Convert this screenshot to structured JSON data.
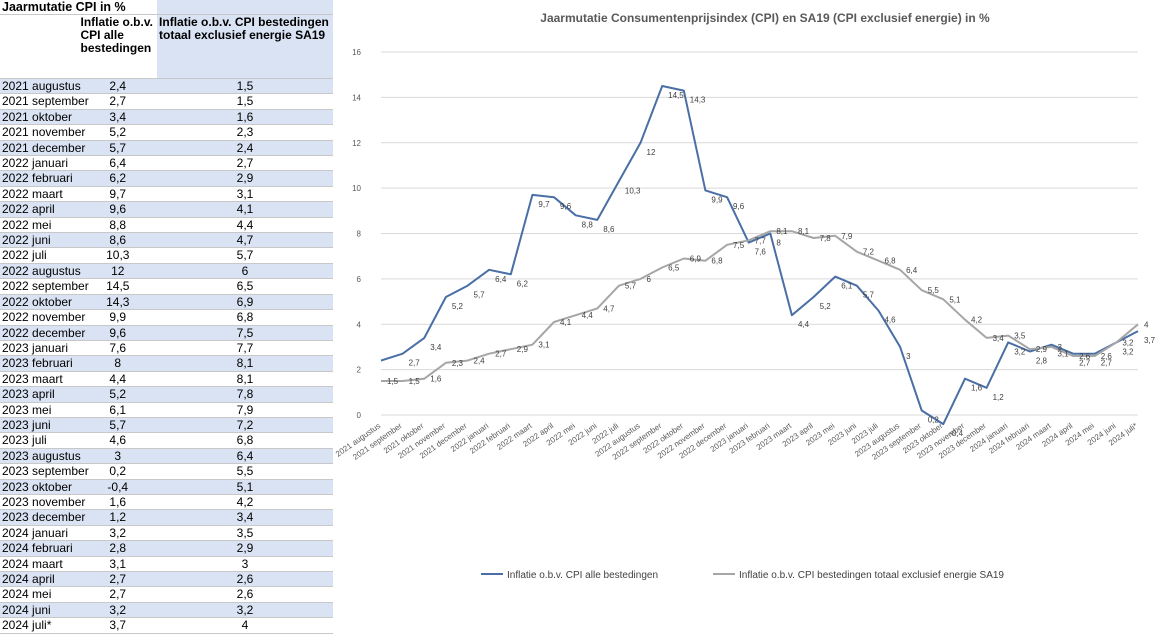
{
  "table": {
    "title": "Jaarmutatie CPI in %",
    "col_a_header": "Inflatie o.b.v. CPI alle bestedingen",
    "col_b_header": "Inflatie o.b.v. CPI bestedingen totaal exclusief energie SA19",
    "rows": [
      [
        "2021 augustus",
        "2,4",
        "1,5"
      ],
      [
        "2021 september",
        "2,7",
        "1,5"
      ],
      [
        "2021 oktober",
        "3,4",
        "1,6"
      ],
      [
        "2021 november",
        "5,2",
        "2,3"
      ],
      [
        "2021 december",
        "5,7",
        "2,4"
      ],
      [
        "2022 januari",
        "6,4",
        "2,7"
      ],
      [
        "2022 februari",
        "6,2",
        "2,9"
      ],
      [
        "2022 maart",
        "9,7",
        "3,1"
      ],
      [
        "2022 april",
        "9,6",
        "4,1"
      ],
      [
        "2022 mei",
        "8,8",
        "4,4"
      ],
      [
        "2022 juni",
        "8,6",
        "4,7"
      ],
      [
        "2022 juli",
        "10,3",
        "5,7"
      ],
      [
        "2022 augustus",
        "12",
        "6"
      ],
      [
        "2022 september",
        "14,5",
        "6,5"
      ],
      [
        "2022 oktober",
        "14,3",
        "6,9"
      ],
      [
        "2022 november",
        "9,9",
        "6,8"
      ],
      [
        "2022 december",
        "9,6",
        "7,5"
      ],
      [
        "2023 januari",
        "7,6",
        "7,7"
      ],
      [
        "2023 februari",
        "8",
        "8,1"
      ],
      [
        "2023 maart",
        "4,4",
        "8,1"
      ],
      [
        "2023 april",
        "5,2",
        "7,8"
      ],
      [
        "2023 mei",
        "6,1",
        "7,9"
      ],
      [
        "2023 juni",
        "5,7",
        "7,2"
      ],
      [
        "2023 juli",
        "4,6",
        "6,8"
      ],
      [
        "2023 augustus",
        "3",
        "6,4"
      ],
      [
        "2023 september",
        "0,2",
        "5,5"
      ],
      [
        "2023 oktober",
        "-0,4",
        "5,1"
      ],
      [
        "2023 november",
        "1,6",
        "4,2"
      ],
      [
        "2023 december",
        "1,2",
        "3,4"
      ],
      [
        "2024 januari",
        "3,2",
        "3,5"
      ],
      [
        "2024 februari",
        "2,8",
        "2,9"
      ],
      [
        "2024 maart",
        "3,1",
        "3"
      ],
      [
        "2024 april",
        "2,7",
        "2,6"
      ],
      [
        "2024 mei",
        "2,7",
        "2,6"
      ],
      [
        "2024 juni",
        "3,2",
        "3,2"
      ],
      [
        "2024 juli*",
        "3,7",
        "4"
      ]
    ]
  },
  "chart_data": {
    "type": "line",
    "title": "Jaarmutatie Consumentenprijsindex (CPI) en SA19 (CPI exclusief energie) in %",
    "xlabel": "",
    "ylabel": "",
    "ylim": [
      0,
      16
    ],
    "yticks": [
      0,
      2,
      4,
      6,
      8,
      10,
      12,
      14,
      16
    ],
    "grid": true,
    "legend_position": "bottom",
    "categories": [
      "2021 augustus",
      "2021 september",
      "2021 oktober",
      "2021 november",
      "2021 december",
      "2022 januari",
      "2022 februari",
      "2022 maart",
      "2022 april",
      "2022 mei",
      "2022 juni",
      "2022 juli",
      "2022 augustus",
      "2022 september",
      "2022 oktober",
      "2022 november",
      "2022 december",
      "2023 januari",
      "2023 februari",
      "2023 maart",
      "2023 april",
      "2023 mei",
      "2023 juni",
      "2023 juli",
      "2023 augustus",
      "2023 september",
      "2023 oktober",
      "2023 november",
      "2023 december",
      "2024 januari",
      "2024 februari",
      "2024 maart",
      "2024 april",
      "2024 mei",
      "2024 juni",
      "2024 juli*"
    ],
    "series": [
      {
        "name": "Inflatie o.b.v. CPI alle bestedingen",
        "color": "#4a6fa5",
        "values": [
          2.4,
          2.7,
          3.4,
          5.2,
          5.7,
          6.4,
          6.2,
          9.7,
          9.6,
          8.8,
          8.6,
          10.3,
          12,
          14.5,
          14.3,
          9.9,
          9.6,
          7.6,
          8,
          4.4,
          5.2,
          6.1,
          5.7,
          4.6,
          3,
          0.2,
          -0.4,
          1.6,
          1.2,
          3.2,
          2.8,
          3.1,
          2.7,
          2.7,
          3.2,
          3.7
        ],
        "labels": [
          "",
          "2,7",
          "3,4",
          "5,2",
          "5,7",
          "6,4",
          "6,2",
          "9,7",
          "9,6",
          "8,8",
          "8,6",
          "10,3",
          "12",
          "14,5",
          "14,3",
          "9,9",
          "9,6",
          "7,6",
          "8",
          "4,4",
          "5,2",
          "6,1",
          "5,7",
          "4,6",
          "3",
          "0,2",
          "-0,4",
          "1,6",
          "1,2",
          "3,2",
          "2,8",
          "3,1",
          "2,7",
          "2,7",
          "3,2",
          "3,7"
        ]
      },
      {
        "name": "Inflatie o.b.v. CPI bestedingen totaal exclusief energie SA19",
        "color": "#a6a6a6",
        "values": [
          1.5,
          1.5,
          1.6,
          2.3,
          2.4,
          2.7,
          2.9,
          3.1,
          4.1,
          4.4,
          4.7,
          5.7,
          6,
          6.5,
          6.9,
          6.8,
          7.5,
          7.7,
          8.1,
          8.1,
          7.8,
          7.9,
          7.2,
          6.8,
          6.4,
          5.5,
          5.1,
          4.2,
          3.4,
          3.5,
          2.9,
          3,
          2.6,
          2.6,
          3.2,
          4
        ],
        "labels": [
          "1,5",
          "1,5",
          "1,6",
          "2,3",
          "2,4",
          "2,7",
          "2,9",
          "3,1",
          "4,1",
          "4,4",
          "4,7",
          "5,7",
          "6",
          "6,5",
          "6,9",
          "6,8",
          "7,5",
          "7,7",
          "8,1",
          "8,1",
          "7,8",
          "7,9",
          "7,2",
          "6,8",
          "6,4",
          "5,5",
          "5,1",
          "4,2",
          "3,4",
          "3,5",
          "2,9",
          "3",
          "2,6",
          "2,6",
          "3,2",
          "4"
        ]
      }
    ]
  }
}
